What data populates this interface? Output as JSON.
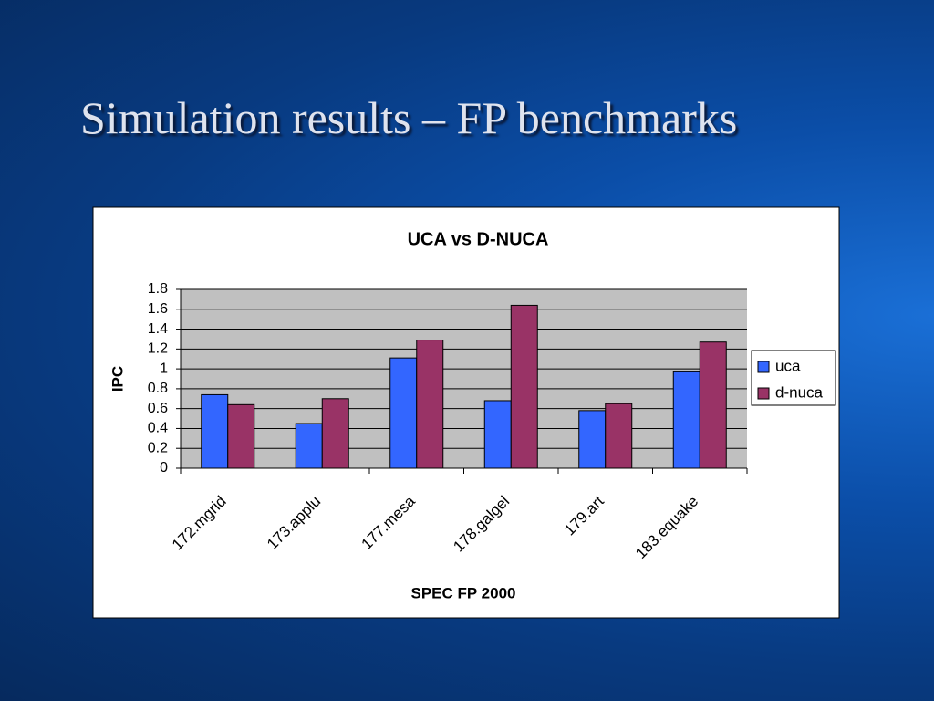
{
  "slide": {
    "title": "Simulation results – FP benchmarks"
  },
  "chart_data": {
    "type": "bar",
    "title": "UCA vs D-NUCA",
    "x_label": "SPEC FP 2000",
    "y_label": "IPC",
    "categories": [
      "172.mgrid",
      "173.applu",
      "177.mesa",
      "178.galgel",
      "179.art",
      "183.equake"
    ],
    "series": [
      {
        "name": "uca",
        "color": "#3366ff",
        "values": [
          0.74,
          0.45,
          1.11,
          0.68,
          0.58,
          0.97
        ]
      },
      {
        "name": "d-nuca",
        "color": "#993366",
        "values": [
          0.64,
          0.7,
          1.29,
          1.64,
          0.65,
          1.27
        ]
      }
    ],
    "ylim": [
      0,
      1.8
    ],
    "yticks": [
      0,
      0.2,
      0.4,
      0.6,
      0.8,
      1,
      1.2,
      1.4,
      1.6,
      1.8
    ],
    "grid": true,
    "legend": "right"
  }
}
